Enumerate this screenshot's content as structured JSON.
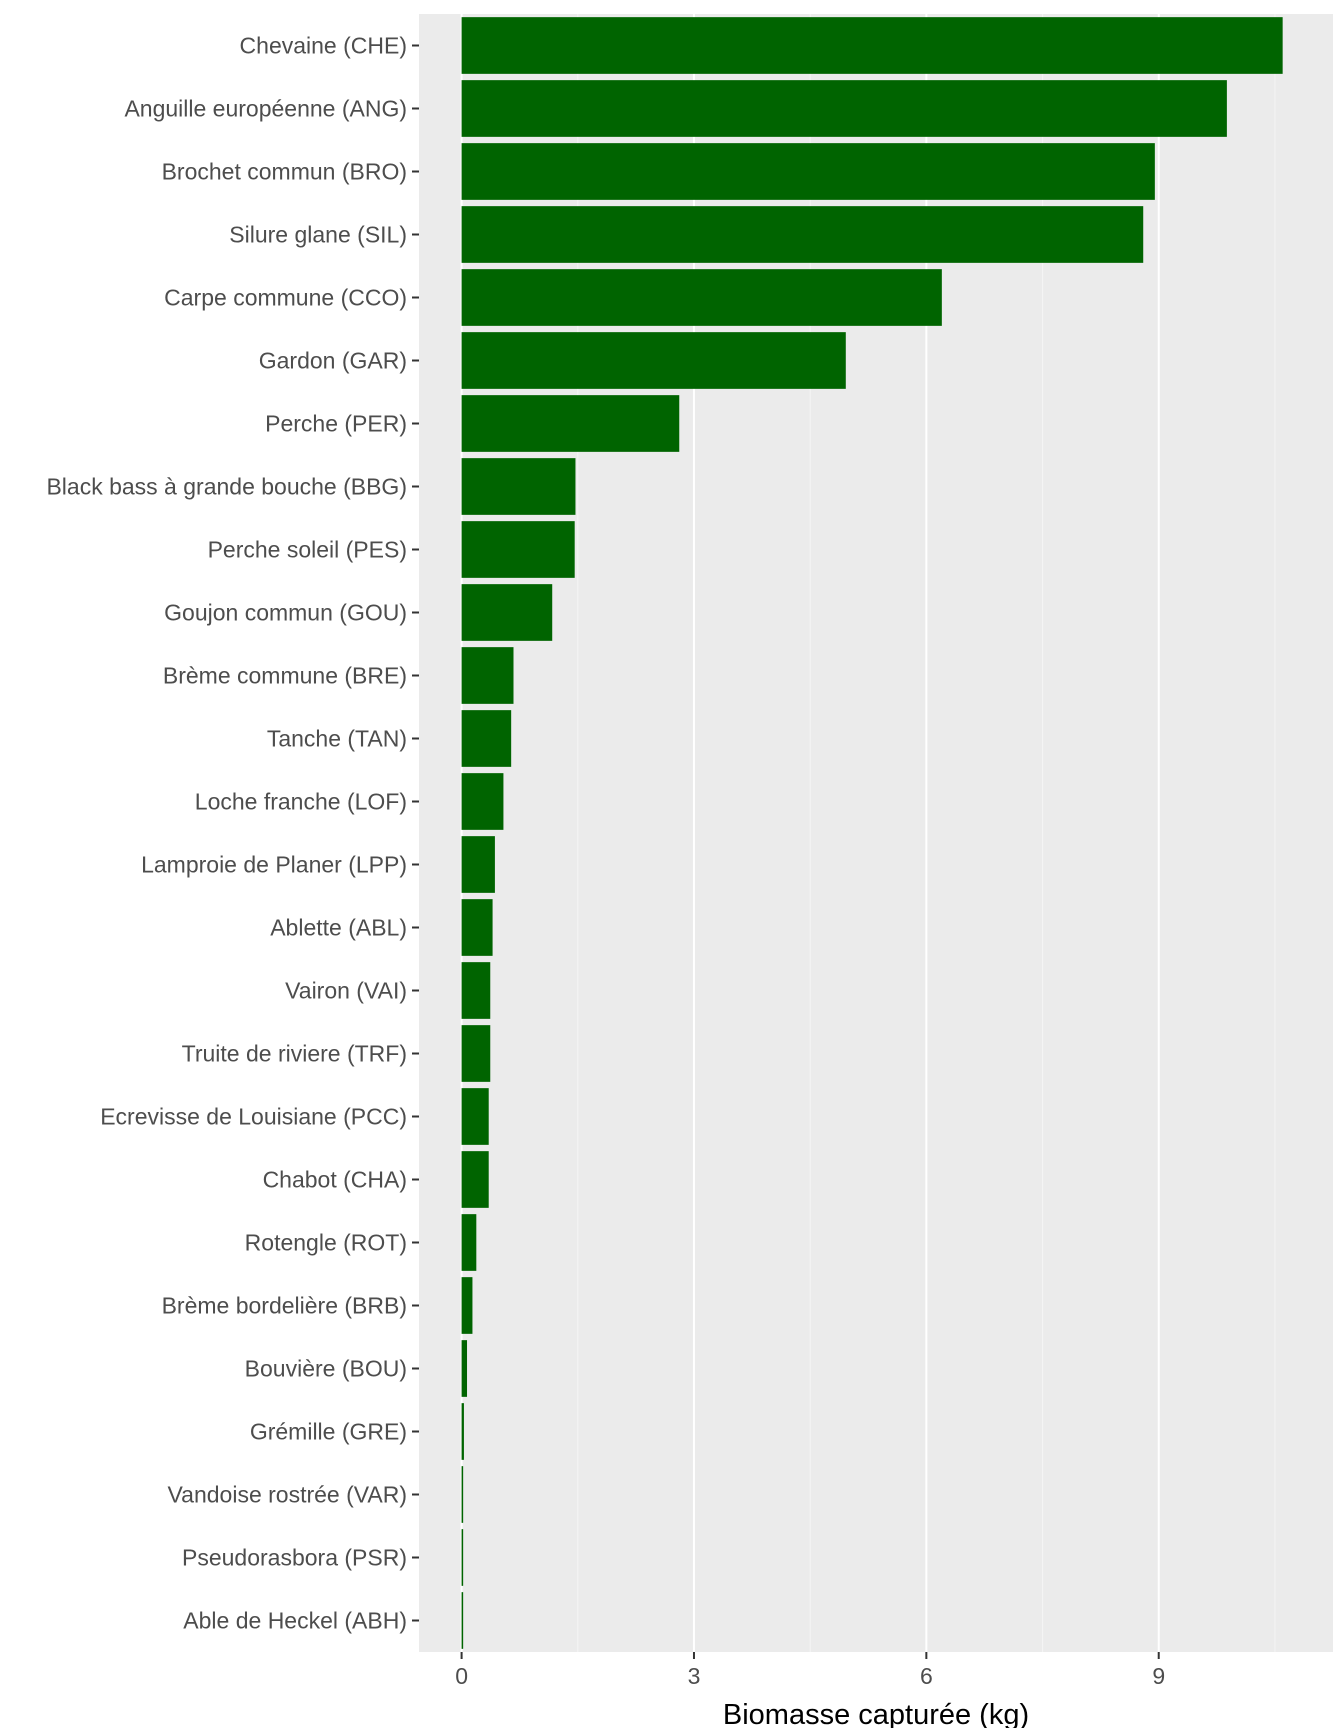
{
  "chart_data": {
    "type": "bar",
    "orientation": "horizontal",
    "title": "",
    "xlabel": "Biomasse capturée (kg)",
    "ylabel": "",
    "xlim": [
      -0.55,
      11.25
    ],
    "x_ticks": [
      0,
      3,
      6,
      9
    ],
    "x_tick_labels": [
      "0",
      "3",
      "6",
      "9"
    ],
    "grid": true,
    "legend": "none",
    "colors": {
      "bar": "#006400",
      "panel": "#EBEBEB",
      "grid_major": "#FFFFFF",
      "grid_minor": "#F5F5F5",
      "tick_text": "#4D4D4D",
      "tick_mark": "#333333"
    },
    "categories": [
      "Chevaine (CHE)",
      "Anguille européenne (ANG)",
      "Brochet commun (BRO)",
      "Silure glane (SIL)",
      "Carpe commune (CCO)",
      "Gardon (GAR)",
      "Perche (PER)",
      "Black bass à grande bouche (BBG)",
      "Perche soleil (PES)",
      "Goujon commun (GOU)",
      "Brème commune (BRE)",
      "Tanche (TAN)",
      "Loche franche (LOF)",
      "Lamproie de Planer (LPP)",
      "Ablette (ABL)",
      "Vairon (VAI)",
      "Truite de riviere (TRF)",
      "Ecrevisse de Louisiane (PCC)",
      "Chabot (CHA)",
      "Rotengle (ROT)",
      "Brème bordelière (BRB)",
      "Bouvière (BOU)",
      "Grémille (GRE)",
      "Vandoise rostrée (VAR)",
      "Pseudorasbora (PSR)",
      "Able de Heckel (ABH)"
    ],
    "values": [
      10.6,
      9.88,
      8.95,
      8.8,
      6.2,
      4.96,
      2.81,
      1.47,
      1.46,
      1.17,
      0.67,
      0.64,
      0.54,
      0.43,
      0.4,
      0.37,
      0.37,
      0.35,
      0.35,
      0.19,
      0.14,
      0.07,
      0.03,
      0.02,
      0.02,
      0.02
    ]
  }
}
